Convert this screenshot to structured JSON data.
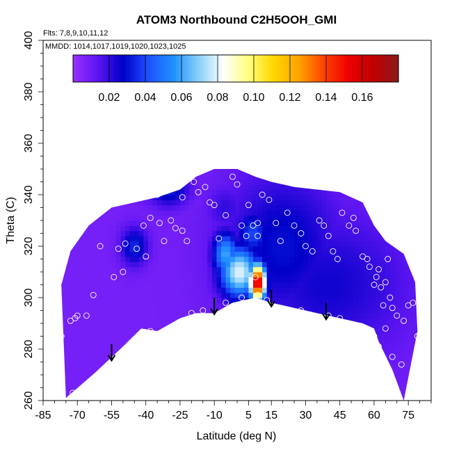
{
  "chart_data": {
    "type": "heatmap",
    "title": "ATOM3 Northbound C2H5OOH_GMI",
    "subtitle_flights": "Flts: 7,8,9,10,11,12",
    "subtitle_dates": "MMDD: 1014,1017,1019,1020,1023,1025",
    "xlabel": "Latitude (deg N)",
    "ylabel": "Theta (C)",
    "xlim": [
      -85,
      85
    ],
    "ylim": [
      260,
      400
    ],
    "x_ticks": [
      -85,
      -70,
      -55,
      -40,
      -25,
      -10,
      5,
      15,
      30,
      45,
      60,
      75
    ],
    "y_ticks": [
      260,
      280,
      300,
      320,
      340,
      360,
      380,
      400
    ],
    "colorbar": {
      "range": [
        0,
        0.18
      ],
      "ticks": [
        "0.02",
        "0.04",
        "0.06",
        "0.08",
        "0.10",
        "0.12",
        "0.14",
        "0.16"
      ],
      "tick_values": [
        0.02,
        0.04,
        0.06,
        0.08,
        0.1,
        0.12,
        0.14,
        0.16
      ],
      "colors": [
        "#9b30ff",
        "#5a14f0",
        "#0000c8",
        "#1e50ff",
        "#1e90ff",
        "#87cefa",
        "#ffffff",
        "#ffff80",
        "#ffd700",
        "#ffa500",
        "#ff4500",
        "#ee0000",
        "#c00000",
        "#8b1a1a"
      ]
    },
    "field": {
      "background_value": 0.008,
      "lower_boundary": [
        [
          -75,
          261
        ],
        [
          -62,
          271
        ],
        [
          -50,
          281
        ],
        [
          -42,
          288
        ],
        [
          -35,
          287
        ],
        [
          -25,
          292
        ],
        [
          -18,
          294
        ],
        [
          -10,
          294
        ],
        [
          -2,
          298
        ],
        [
          8,
          300
        ],
        [
          15,
          298
        ],
        [
          25,
          296
        ],
        [
          35,
          294
        ],
        [
          45,
          292
        ],
        [
          55,
          290
        ],
        [
          60,
          288
        ],
        [
          62,
          283
        ],
        [
          68,
          272
        ],
        [
          73,
          260
        ]
      ],
      "upper_boundary": [
        [
          -77,
          305
        ],
        [
          -73,
          318
        ],
        [
          -65,
          328
        ],
        [
          -55,
          335
        ],
        [
          -45,
          337
        ],
        [
          -35,
          339
        ],
        [
          -25,
          342
        ],
        [
          -18,
          347
        ],
        [
          -10,
          350
        ],
        [
          0,
          350
        ],
        [
          8,
          347
        ],
        [
          15,
          345
        ],
        [
          25,
          343
        ],
        [
          35,
          342
        ],
        [
          45,
          341
        ],
        [
          55,
          337
        ],
        [
          60,
          328
        ],
        [
          65,
          322
        ],
        [
          73,
          317
        ],
        [
          78,
          306
        ],
        [
          79,
          287
        ]
      ],
      "features": [
        {
          "lon": -30,
          "theta": 343,
          "value": 0.035,
          "sx": 6,
          "sy": 5
        },
        {
          "lon": -45,
          "theta": 320,
          "value": 0.035,
          "sx": 4,
          "sy": 5
        },
        {
          "lon": -5,
          "theta": 317,
          "value": 0.06,
          "sx": 4,
          "sy": 6
        },
        {
          "lon": 1,
          "theta": 310,
          "value": 0.08,
          "sx": 6,
          "sy": 7
        },
        {
          "lon": 9,
          "theta": 306,
          "value": 0.165,
          "sx": 2.5,
          "sy": 5
        },
        {
          "lon": 7,
          "theta": 325,
          "value": 0.04,
          "sx": 5,
          "sy": 6
        },
        {
          "lon": 20,
          "theta": 320,
          "value": 0.03,
          "sx": 18,
          "sy": 20
        },
        {
          "lon": 40,
          "theta": 305,
          "value": 0.025,
          "sx": 25,
          "sy": 20
        },
        {
          "lon": -5,
          "theta": 335,
          "value": 0.02,
          "sx": 6,
          "sy": 6
        }
      ]
    },
    "observations": [
      [
        -80,
        295
      ],
      [
        -77,
        285
      ],
      [
        -73,
        291
      ],
      [
        -71,
        292
      ],
      [
        -70,
        293
      ],
      [
        -66,
        293
      ],
      [
        -63,
        301
      ],
      [
        -72,
        263
      ],
      [
        -54,
        308
      ],
      [
        -50,
        310
      ],
      [
        -52,
        319
      ],
      [
        -49,
        321
      ],
      [
        -41,
        328
      ],
      [
        -44,
        319
      ],
      [
        -40,
        316
      ],
      [
        -38,
        331
      ],
      [
        -34,
        329
      ],
      [
        -32,
        322
      ],
      [
        -29,
        330
      ],
      [
        -27,
        327
      ],
      [
        -24,
        326
      ],
      [
        -22,
        322
      ],
      [
        -19,
        345
      ],
      [
        -17,
        341
      ],
      [
        -14,
        343
      ],
      [
        -12,
        337
      ],
      [
        -10,
        336
      ],
      [
        -5,
        332
      ],
      [
        -2,
        347
      ],
      [
        -8,
        323
      ],
      [
        2,
        328
      ],
      [
        4,
        324
      ],
      [
        7,
        328
      ],
      [
        9,
        329
      ],
      [
        9,
        324
      ],
      [
        5,
        336
      ],
      [
        11,
        340
      ],
      [
        14,
        338
      ],
      [
        17,
        329
      ],
      [
        19,
        322
      ],
      [
        22,
        333
      ],
      [
        25,
        328
      ],
      [
        28,
        325
      ],
      [
        30,
        320
      ],
      [
        33,
        318
      ],
      [
        36,
        330
      ],
      [
        38,
        328
      ],
      [
        40,
        324
      ],
      [
        42,
        318
      ],
      [
        44,
        315
      ],
      [
        46,
        333
      ],
      [
        49,
        328
      ],
      [
        51,
        331
      ],
      [
        52,
        326
      ],
      [
        55,
        316
      ],
      [
        57,
        315
      ],
      [
        58,
        312
      ],
      [
        60,
        305
      ],
      [
        61,
        308
      ],
      [
        62,
        311
      ],
      [
        63,
        304
      ],
      [
        64,
        297
      ],
      [
        65,
        306
      ],
      [
        66,
        315
      ],
      [
        67,
        300
      ],
      [
        68,
        296
      ],
      [
        70,
        293
      ],
      [
        56,
        287
      ],
      [
        58,
        286
      ],
      [
        60,
        285
      ],
      [
        62,
        281
      ],
      [
        65,
        288
      ],
      [
        68,
        277
      ],
      [
        72,
        274
      ],
      [
        73,
        291
      ],
      [
        75,
        297
      ],
      [
        77,
        298
      ],
      [
        79,
        285
      ],
      [
        -38,
        287
      ],
      [
        -30,
        288
      ],
      [
        -20,
        294
      ],
      [
        -15,
        295
      ],
      [
        -5,
        298
      ],
      [
        2,
        300
      ],
      [
        9,
        301
      ],
      [
        13,
        299
      ],
      [
        28,
        295
      ],
      [
        40,
        293
      ],
      [
        45,
        292
      ],
      [
        8,
        308
      ],
      [
        -60,
        320
      ],
      [
        -35,
        340
      ],
      [
        -30,
        346
      ],
      [
        -24,
        339
      ],
      [
        -14,
        350
      ],
      [
        0,
        344
      ]
    ],
    "arrows": [
      [
        -55,
        282
      ],
      [
        -10,
        300
      ],
      [
        15,
        303
      ],
      [
        39,
        298
      ]
    ]
  }
}
